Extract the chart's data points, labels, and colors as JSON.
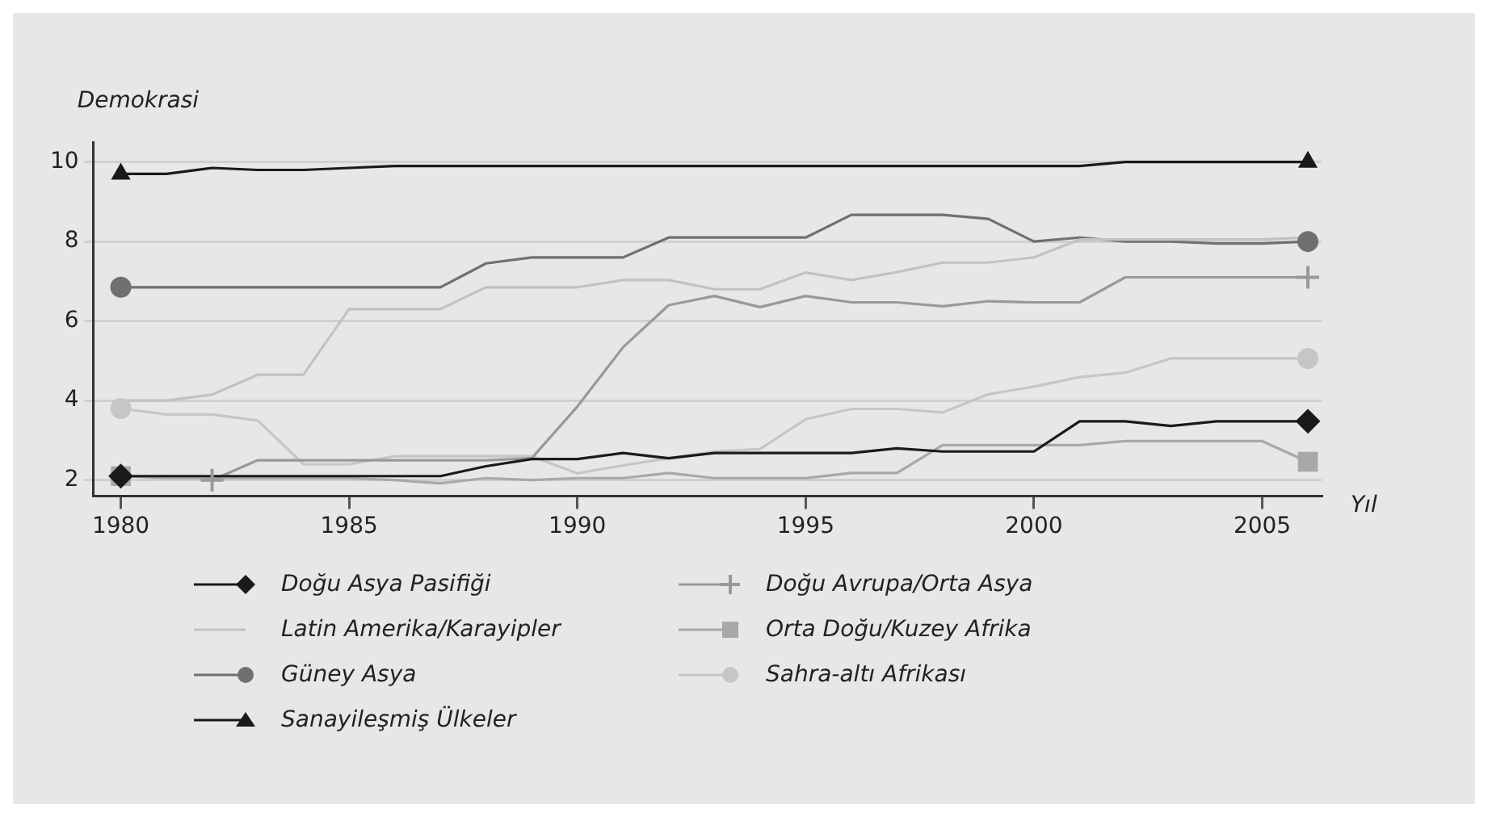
{
  "chart_data": {
    "type": "line",
    "ylabel": "Demokrasi",
    "xlabel": "Yıl",
    "x": [
      1980,
      1981,
      1982,
      1983,
      1984,
      1985,
      1986,
      1987,
      1988,
      1989,
      1990,
      1991,
      1992,
      1993,
      1994,
      1995,
      1996,
      1997,
      1998,
      1999,
      2000,
      2001,
      2002,
      2003,
      2004,
      2005,
      2006
    ],
    "xlim": [
      1979.4,
      2006.3
    ],
    "xticks": [
      1980,
      1985,
      1990,
      1995,
      2000,
      2005
    ],
    "ylim": [
      1.6,
      10.5
    ],
    "yticks": [
      2,
      4,
      6,
      8,
      10
    ],
    "grid": "y",
    "legend": "bottom",
    "line_style": "solid",
    "series": [
      {
        "name": "Doğu Asya Pasifiği",
        "color": "#1a1a1a",
        "values": [
          2.1,
          2.1,
          2.1,
          2.1,
          2.1,
          2.1,
          2.1,
          2.1,
          2.35,
          2.53,
          2.53,
          2.68,
          2.55,
          2.68,
          2.68,
          2.68,
          2.68,
          2.8,
          2.72,
          2.72,
          2.72,
          3.48,
          3.48,
          3.36,
          3.48,
          3.48,
          3.48
        ]
      },
      {
        "type": "scatter",
        "color": "#1a1a1a",
        "marker": "diamond",
        "x": [
          1980,
          2006
        ],
        "values": [
          2.1,
          3.48
        ]
      },
      {
        "name": "Latin Amerika/Karayipler",
        "color": "#c2c2c2",
        "values": [
          4.0,
          4.0,
          4.15,
          4.65,
          4.65,
          6.3,
          6.3,
          6.3,
          6.85,
          6.85,
          6.85,
          7.03,
          7.03,
          6.8,
          6.8,
          7.22,
          7.03,
          7.23,
          7.47,
          7.47,
          7.6,
          8.05,
          8.05,
          8.05,
          8.05,
          8.05,
          8.1
        ]
      },
      {
        "name": "Güney Asya",
        "color": "#707070",
        "values": [
          6.85,
          6.85,
          6.85,
          6.85,
          6.85,
          6.85,
          6.85,
          6.85,
          7.45,
          7.6,
          7.6,
          7.6,
          8.1,
          8.1,
          8.1,
          8.1,
          8.67,
          8.67,
          8.67,
          8.57,
          8.0,
          8.1,
          8.0,
          8.0,
          7.95,
          7.95,
          8.0
        ]
      },
      {
        "type": "scatter",
        "color": "#707070",
        "marker": "circle",
        "x": [
          1980,
          2006
        ],
        "values": [
          6.85,
          8.0
        ]
      },
      {
        "name": "Sanayileşmiş Ülkeler",
        "color": "#1a1a1a",
        "values": [
          9.7,
          9.7,
          9.85,
          9.8,
          9.8,
          9.85,
          9.9,
          9.9,
          9.9,
          9.9,
          9.9,
          9.9,
          9.9,
          9.9,
          9.9,
          9.9,
          9.9,
          9.9,
          9.9,
          9.9,
          9.9,
          9.9,
          10,
          10,
          10,
          10,
          10
        ]
      },
      {
        "type": "scatter",
        "color": "#1a1a1a",
        "marker": "triangle",
        "x": [
          1980,
          2006
        ],
        "values": [
          9.7,
          10
        ]
      },
      {
        "name": "Doğu Avrupa/Orta Asya",
        "color": "#999999",
        "values": [
          null,
          null,
          2.0,
          2.5,
          2.5,
          2.5,
          2.5,
          2.5,
          2.5,
          2.55,
          3.85,
          5.34,
          6.4,
          6.63,
          6.35,
          6.63,
          6.47,
          6.47,
          6.37,
          6.5,
          6.47,
          6.47,
          7.1,
          7.1,
          7.1,
          7.1,
          7.1
        ]
      },
      {
        "type": "scatter",
        "color": "#999999",
        "marker": "cross",
        "x": [
          1982,
          2006
        ],
        "values": [
          2.0,
          7.1
        ]
      },
      {
        "name": "Orta Doğu/Kuzey Afrika",
        "color": "#a8a8a8",
        "values": [
          2.1,
          2.05,
          2.05,
          2.05,
          2.05,
          2.05,
          2.0,
          1.92,
          2.05,
          2.0,
          2.05,
          2.05,
          2.18,
          2.05,
          2.05,
          2.05,
          2.18,
          2.18,
          2.88,
          2.88,
          2.88,
          2.88,
          2.98,
          2.98,
          2.98,
          2.98,
          2.46
        ]
      },
      {
        "type": "scatter",
        "color": "#a8a8a8",
        "marker": "square",
        "x": [
          1980,
          2006
        ],
        "values": [
          2.1,
          2.46
        ]
      },
      {
        "name": "Sahra-altı Afrikası",
        "color": "#c6c6c6",
        "values": [
          3.8,
          3.65,
          3.65,
          3.5,
          2.4,
          2.4,
          2.6,
          2.6,
          2.6,
          2.6,
          2.17,
          2.37,
          2.55,
          2.72,
          2.78,
          3.53,
          3.79,
          3.79,
          3.7,
          4.16,
          4.35,
          4.59,
          4.7,
          5.06,
          5.06,
          5.06,
          5.06
        ]
      },
      {
        "type": "scatter",
        "color": "#c6c6c6",
        "marker": "circle",
        "x": [
          1980,
          2006
        ],
        "values": [
          3.8,
          5.06
        ]
      }
    ]
  }
}
